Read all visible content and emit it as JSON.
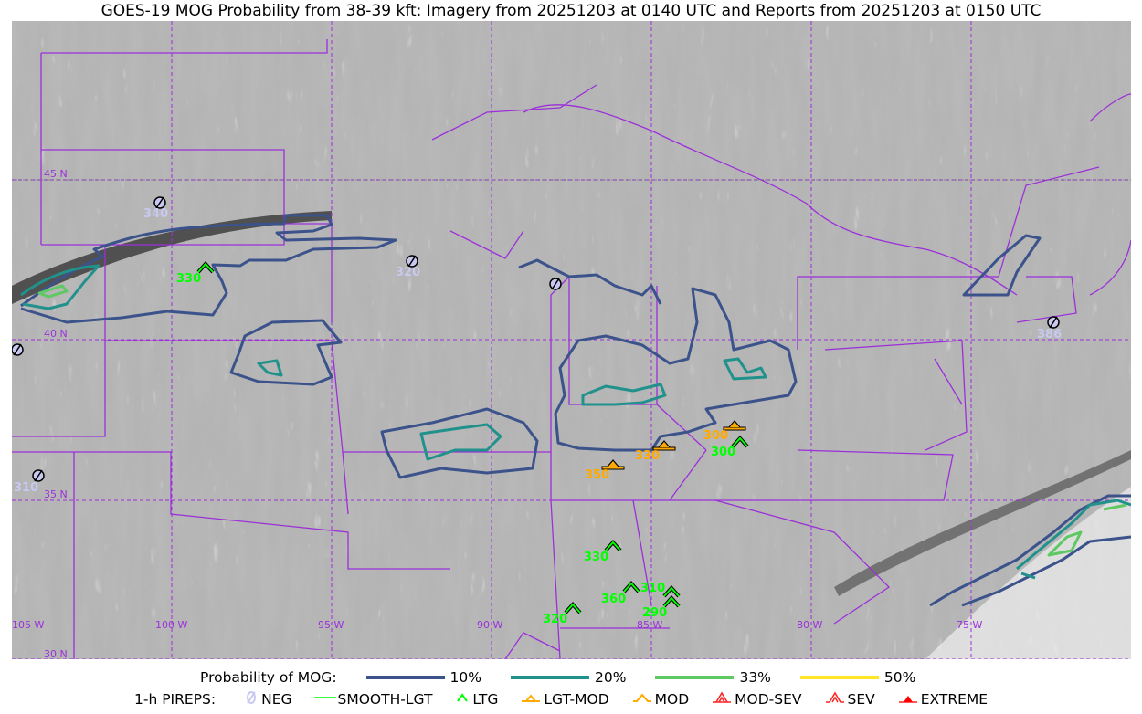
{
  "title": "GOES-19 MOG Probability from 38-39 kft: Imagery from 20251203 at 0140 UTC and Reports from 20251203 at 0150 UTC",
  "map": {
    "lat_labels": [
      "45 N",
      "40 N",
      "35 N",
      "30 N"
    ],
    "lon_labels": [
      "105 W",
      "100 W",
      "95 W",
      "90 W",
      "85 W",
      "80 W",
      "75 W"
    ],
    "border_color": "#9b30d9",
    "pireps": [
      {
        "type": "NEG",
        "alt": "340"
      },
      {
        "type": "NEG",
        "alt": "320"
      },
      {
        "type": "NEG",
        "alt": ""
      },
      {
        "type": "NEG",
        "alt": ""
      },
      {
        "type": "NEG",
        "alt": "310"
      },
      {
        "type": "NEG",
        "alt": "386"
      },
      {
        "type": "LTG",
        "alt": "330"
      },
      {
        "type": "LGT-MOD",
        "alt": "350"
      },
      {
        "type": "LGT-MOD",
        "alt": "330"
      },
      {
        "type": "LGT-MOD",
        "alt": "300"
      },
      {
        "type": "LTG",
        "alt": "300"
      },
      {
        "type": "LTG",
        "alt": "330"
      },
      {
        "type": "LTG",
        "alt": "360"
      },
      {
        "type": "LTG",
        "alt": "310"
      },
      {
        "type": "LTG",
        "alt": "290"
      },
      {
        "type": "LTG",
        "alt": "320"
      }
    ]
  },
  "legend": {
    "prob_label": "Probability of MOG:",
    "prob_levels": [
      {
        "label": "10%",
        "color": "#3b528b"
      },
      {
        "label": "20%",
        "color": "#21918c"
      },
      {
        "label": "33%",
        "color": "#5ec962"
      },
      {
        "label": "50%",
        "color": "#fde725"
      }
    ],
    "pirep_label": "1-h PIREPS:",
    "pirep_types": [
      {
        "label": "NEG",
        "color": "#c8c8f0"
      },
      {
        "label": "SMOOTH-LGT",
        "color": "#00ff00"
      },
      {
        "label": "LTG",
        "color": "#00ff00"
      },
      {
        "label": "LGT-MOD",
        "color": "#ffaa00"
      },
      {
        "label": "MOD",
        "color": "#ffaa00"
      },
      {
        "label": "MOD-SEV",
        "color": "#ff2020"
      },
      {
        "label": "SEV",
        "color": "#ff2020"
      },
      {
        "label": "EXTREME",
        "color": "#ff0000"
      }
    ]
  }
}
